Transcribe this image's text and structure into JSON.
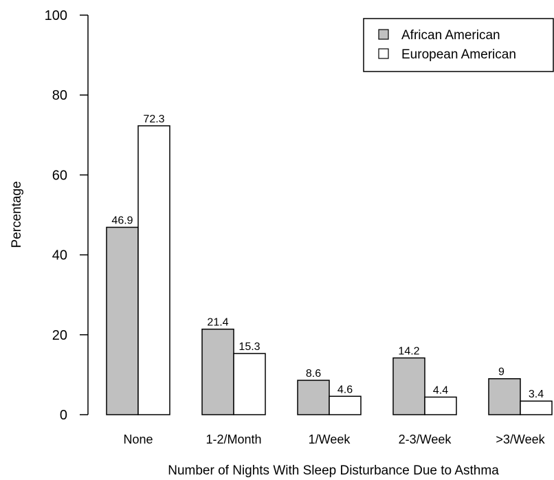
{
  "chart_data": {
    "type": "bar",
    "title": "",
    "xlabel": "Number of Nights With Sleep Disturbance Due to Asthma",
    "ylabel": "Percentage",
    "ylim": [
      0,
      100
    ],
    "yticks": [
      "0",
      "20",
      "40",
      "60",
      "80",
      "100"
    ],
    "grid": false,
    "legend_position": "top-right",
    "categories": [
      "None",
      "1-2/Month",
      "1/Week",
      "2-3/Week",
      ">3/Week"
    ],
    "series": [
      {
        "name": "African American",
        "color": "#c0c0c0",
        "values": [
          46.9,
          21.4,
          8.6,
          14.2,
          9
        ],
        "labels": [
          "46.9",
          "21.4",
          "8.6",
          "14.2",
          "9"
        ]
      },
      {
        "name": "European American",
        "color": "#ffffff",
        "values": [
          72.3,
          15.3,
          4.6,
          4.4,
          3.4
        ],
        "labels": [
          "72.3",
          "15.3",
          "4.6",
          "4.4",
          "3.4"
        ]
      }
    ]
  }
}
